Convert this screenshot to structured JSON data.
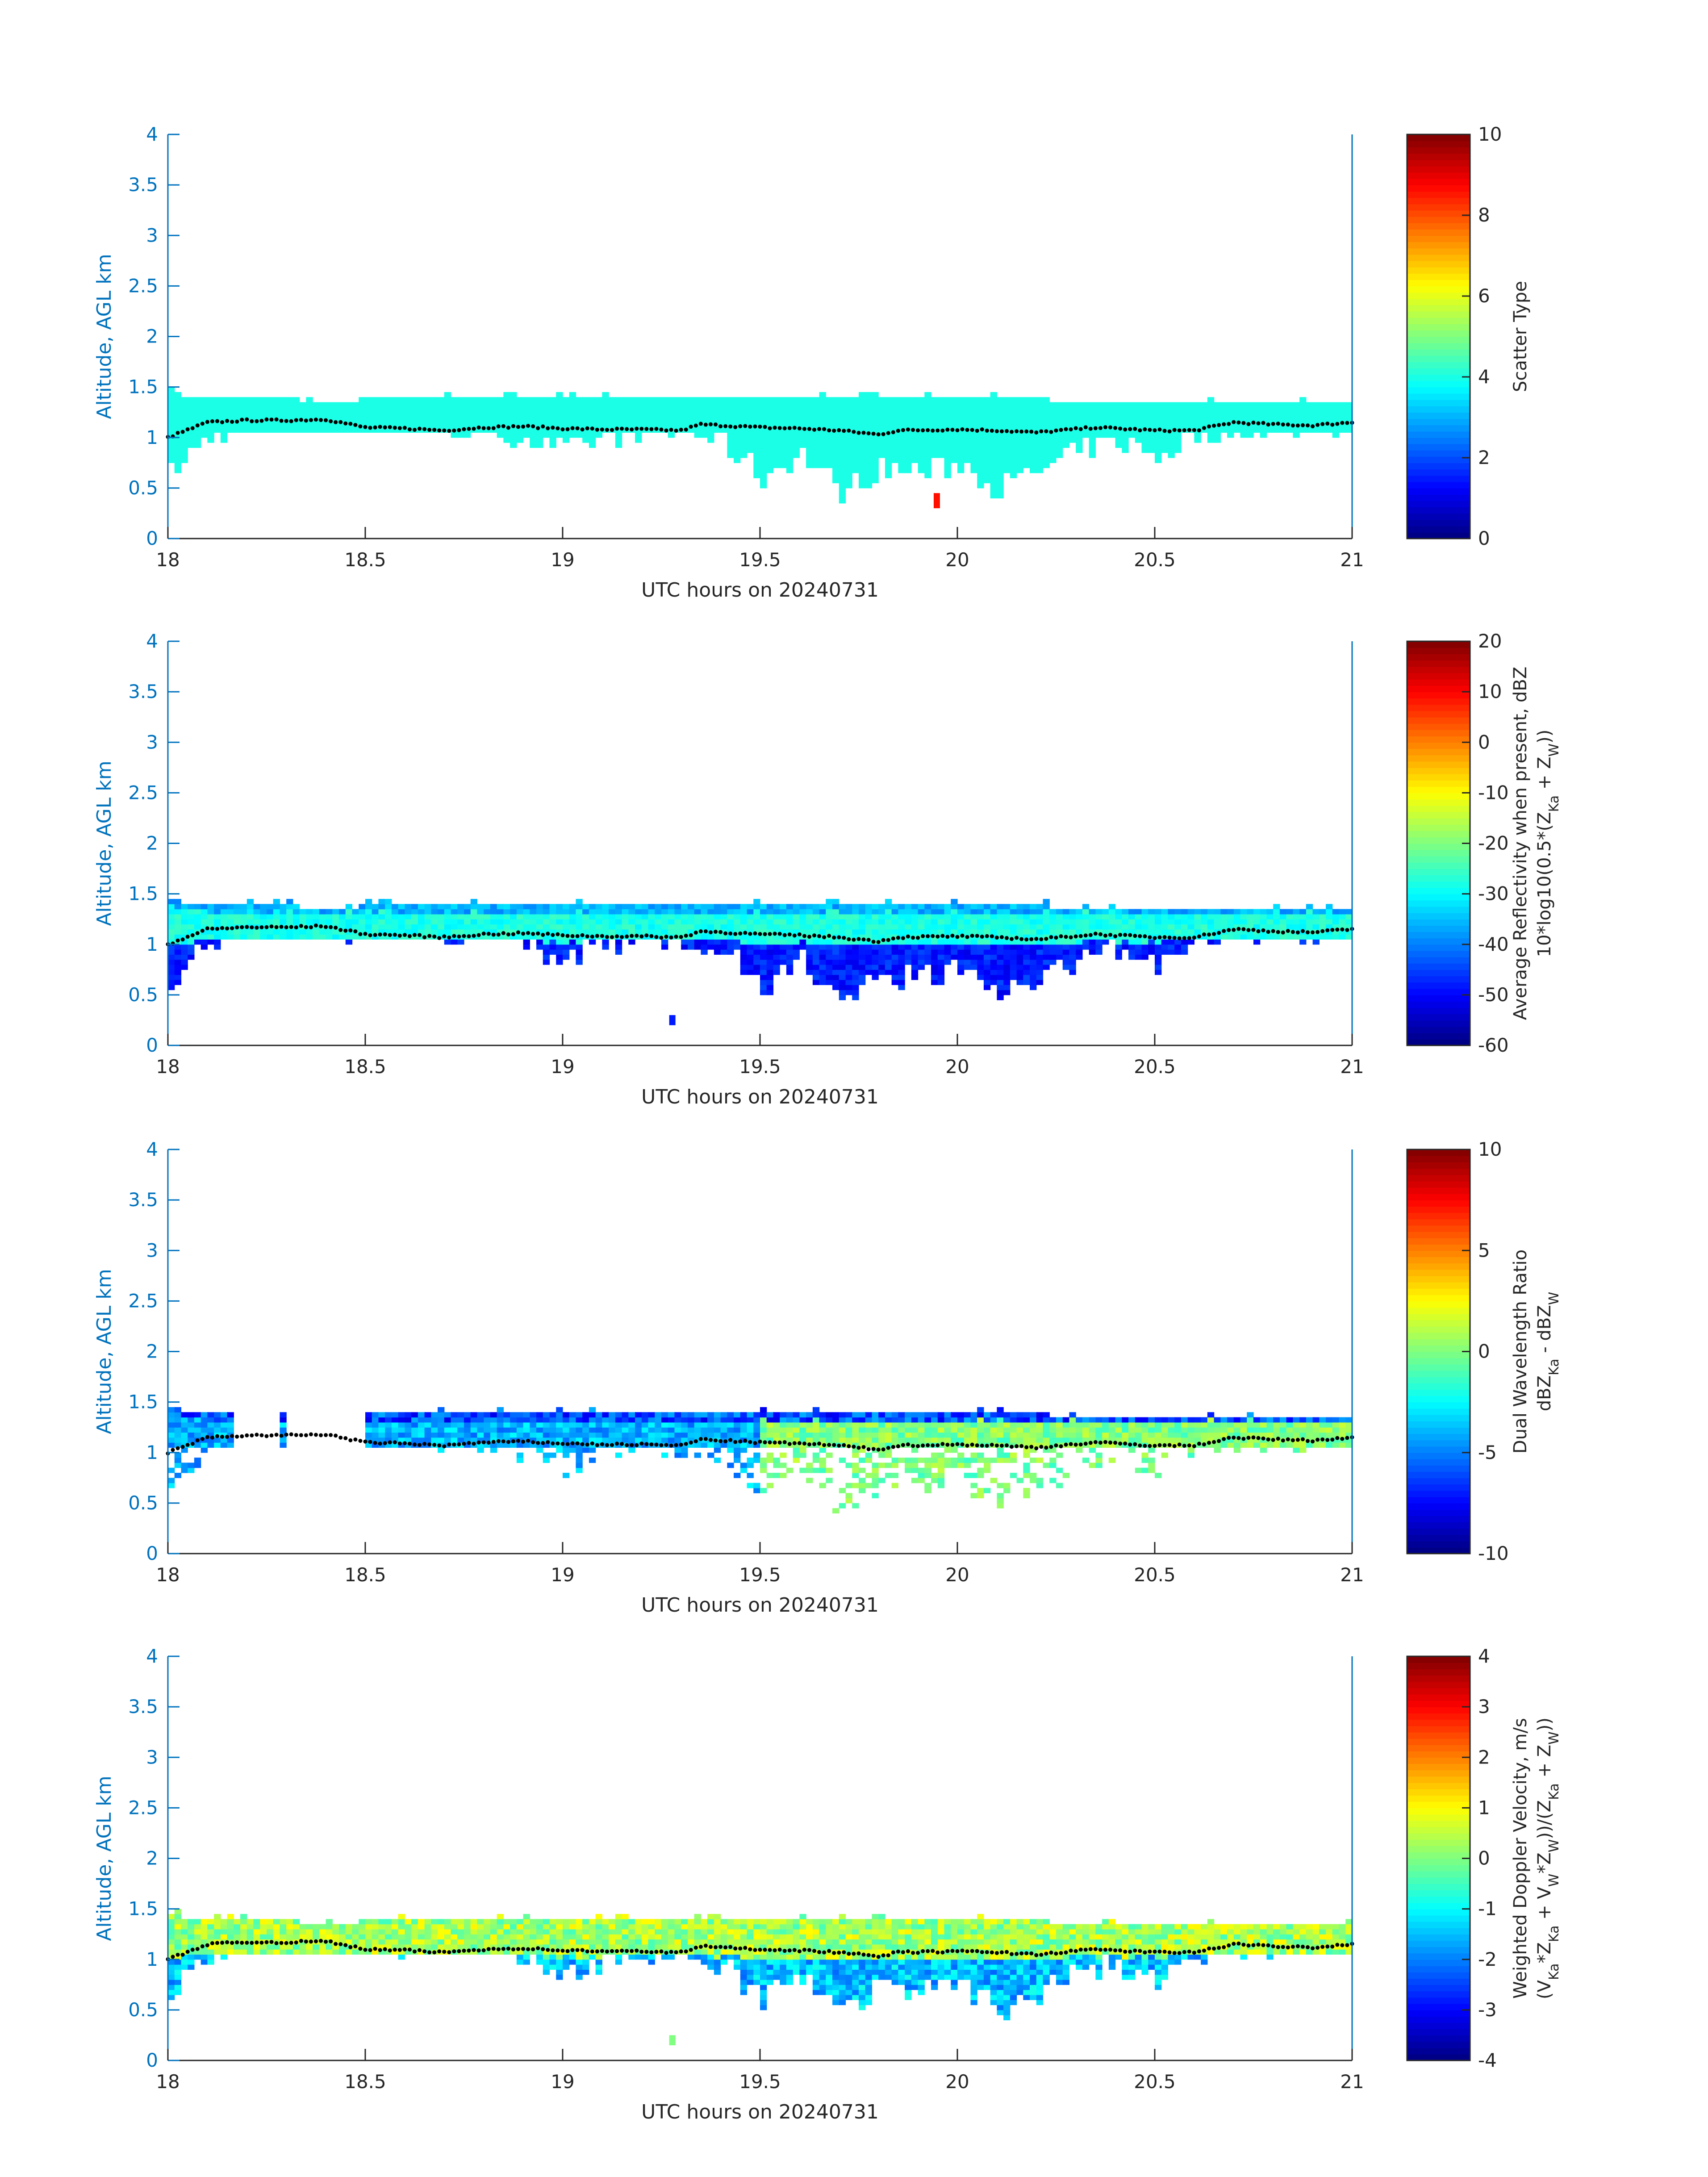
{
  "figure": {
    "echo_layer": {
      "time": [
        18.0,
        18.1,
        18.2,
        18.3,
        18.4,
        18.5,
        18.6,
        18.7,
        18.8,
        18.9,
        19.0,
        19.1,
        19.2,
        19.3,
        19.4,
        19.5,
        19.6,
        19.7,
        19.8,
        19.9,
        20.0,
        20.1,
        20.2,
        20.3,
        20.4,
        20.5,
        20.6,
        20.7,
        20.8,
        20.9,
        21.0
      ],
      "top_km": [
        1.42,
        1.36,
        1.36,
        1.36,
        1.33,
        1.36,
        1.36,
        1.36,
        1.36,
        1.36,
        1.36,
        1.36,
        1.36,
        1.36,
        1.36,
        1.36,
        1.36,
        1.36,
        1.36,
        1.36,
        1.36,
        1.36,
        1.36,
        1.33,
        1.33,
        1.33,
        1.33,
        1.33,
        1.33,
        1.33,
        1.33
      ],
      "base_km": [
        0.55,
        0.9,
        1.05,
        1.05,
        1.05,
        1.0,
        1.0,
        1.0,
        0.95,
        0.9,
        0.75,
        0.9,
        0.95,
        0.95,
        0.85,
        0.5,
        0.75,
        0.35,
        0.6,
        0.55,
        0.65,
        0.4,
        0.55,
        0.75,
        0.85,
        0.7,
        0.95,
        1.0,
        1.0,
        1.0,
        1.05
      ]
    },
    "cloud_base_dots": {
      "time": [
        18.0,
        18.1,
        18.2,
        18.3,
        18.4,
        18.5,
        18.6,
        18.7,
        18.8,
        18.9,
        19.0,
        19.1,
        19.2,
        19.3,
        19.35,
        19.5,
        19.6,
        19.7,
        19.8,
        19.85,
        20.0,
        20.1,
        20.2,
        20.35,
        20.5,
        20.6,
        20.7,
        20.8,
        20.9,
        21.0
      ],
      "alt_km": [
        1.0,
        1.15,
        1.17,
        1.17,
        1.18,
        1.1,
        1.09,
        1.07,
        1.1,
        1.11,
        1.09,
        1.08,
        1.08,
        1.07,
        1.13,
        1.1,
        1.09,
        1.07,
        1.03,
        1.07,
        1.08,
        1.07,
        1.05,
        1.1,
        1.07,
        1.07,
        1.15,
        1.13,
        1.12,
        1.15
      ]
    }
  },
  "chart_data": [
    {
      "type": "heatmap",
      "xlabel": "UTC hours on 20240731",
      "ylabel": "Altitude, AGL km",
      "xlim": [
        18,
        21
      ],
      "ylim": [
        0,
        4
      ],
      "xticks": [
        "18",
        "18.5",
        "19",
        "19.5",
        "20",
        "20.5",
        "21"
      ],
      "yticks": [
        "0",
        "0.5",
        "1",
        "1.5",
        "2",
        "2.5",
        "3",
        "3.5",
        "4"
      ],
      "colorbar": {
        "clim": [
          0,
          10
        ],
        "ticks": [
          "0",
          "2",
          "4",
          "6",
          "8",
          "10"
        ],
        "label_lines": [
          "Scatter Type"
        ]
      },
      "values": {
        "layer": 4,
        "outlier": {
          "time": 19.94,
          "alt_km": [
            0.3,
            0.45
          ],
          "value": 8.6
        }
      }
    },
    {
      "type": "heatmap",
      "xlabel": "UTC hours on 20240731",
      "ylabel": "Altitude, AGL km",
      "xlim": [
        18,
        21
      ],
      "ylim": [
        0,
        4
      ],
      "xticks": [
        "18",
        "18.5",
        "19",
        "19.5",
        "20",
        "20.5",
        "21"
      ],
      "yticks": [
        "0",
        "0.5",
        "1",
        "1.5",
        "2",
        "2.5",
        "3",
        "3.5",
        "4"
      ],
      "colorbar": {
        "clim": [
          -60,
          20
        ],
        "ticks": [
          "-60",
          "-50",
          "-40",
          "-30",
          "-20",
          "-10",
          "0",
          "10",
          "20"
        ],
        "label_lines": [
          "Average Reflectivity when present, dBZ",
          "10*log10(0.5*(Z_{Ka} + Z_{W}))"
        ]
      },
      "values": {
        "top": -40,
        "core": -28,
        "bottom": -52,
        "isolated": {
          "time": 19.27,
          "alt_km": [
            0.2,
            0.3
          ],
          "value": -48
        }
      }
    },
    {
      "type": "heatmap",
      "xlabel": "UTC hours on 20240731",
      "ylabel": "Altitude, AGL km",
      "xlim": [
        18,
        21
      ],
      "ylim": [
        0,
        4
      ],
      "xticks": [
        "18",
        "18.5",
        "19",
        "19.5",
        "20",
        "20.5",
        "21"
      ],
      "yticks": [
        "0",
        "0.5",
        "1",
        "1.5",
        "2",
        "2.5",
        "3",
        "3.5",
        "4"
      ],
      "colorbar": {
        "clim": [
          -10,
          10
        ],
        "ticks": [
          "-10",
          "-5",
          "0",
          "5",
          "10"
        ],
        "label_lines": [
          "Dual Wavelength Ratio",
          "dBZ_{Ka} - dBZ_{W}"
        ]
      },
      "values": {
        "top": -8,
        "core_early": -4,
        "core_late": 0,
        "gap_hours": [
          18.15,
          18.5
        ]
      }
    },
    {
      "type": "heatmap",
      "xlabel": "UTC hours on 20240731",
      "ylabel": "Altitude, AGL km",
      "xlim": [
        18,
        21
      ],
      "ylim": [
        0,
        4
      ],
      "xticks": [
        "18",
        "18.5",
        "19",
        "19.5",
        "20",
        "20.5",
        "21"
      ],
      "yticks": [
        "0",
        "0.5",
        "1",
        "1.5",
        "2",
        "2.5",
        "3",
        "3.5",
        "4"
      ],
      "colorbar": {
        "clim": [
          -4,
          4
        ],
        "ticks": [
          "-4",
          "-3",
          "-2",
          "-1",
          "0",
          "1",
          "2",
          "3",
          "4"
        ],
        "label_lines": [
          "Weighted Doppler Velocity, m/s",
          "(V_{Ka}*Z_{Ka} + V_{W}*Z_{W}))/(Z_{Ka} + Z_{W}))"
        ]
      },
      "values": {
        "core": 0.3,
        "bottom": -1.5,
        "isolated": {
          "time": 19.27,
          "alt_km": [
            0.15,
            0.25
          ],
          "value": 0
        }
      }
    }
  ]
}
